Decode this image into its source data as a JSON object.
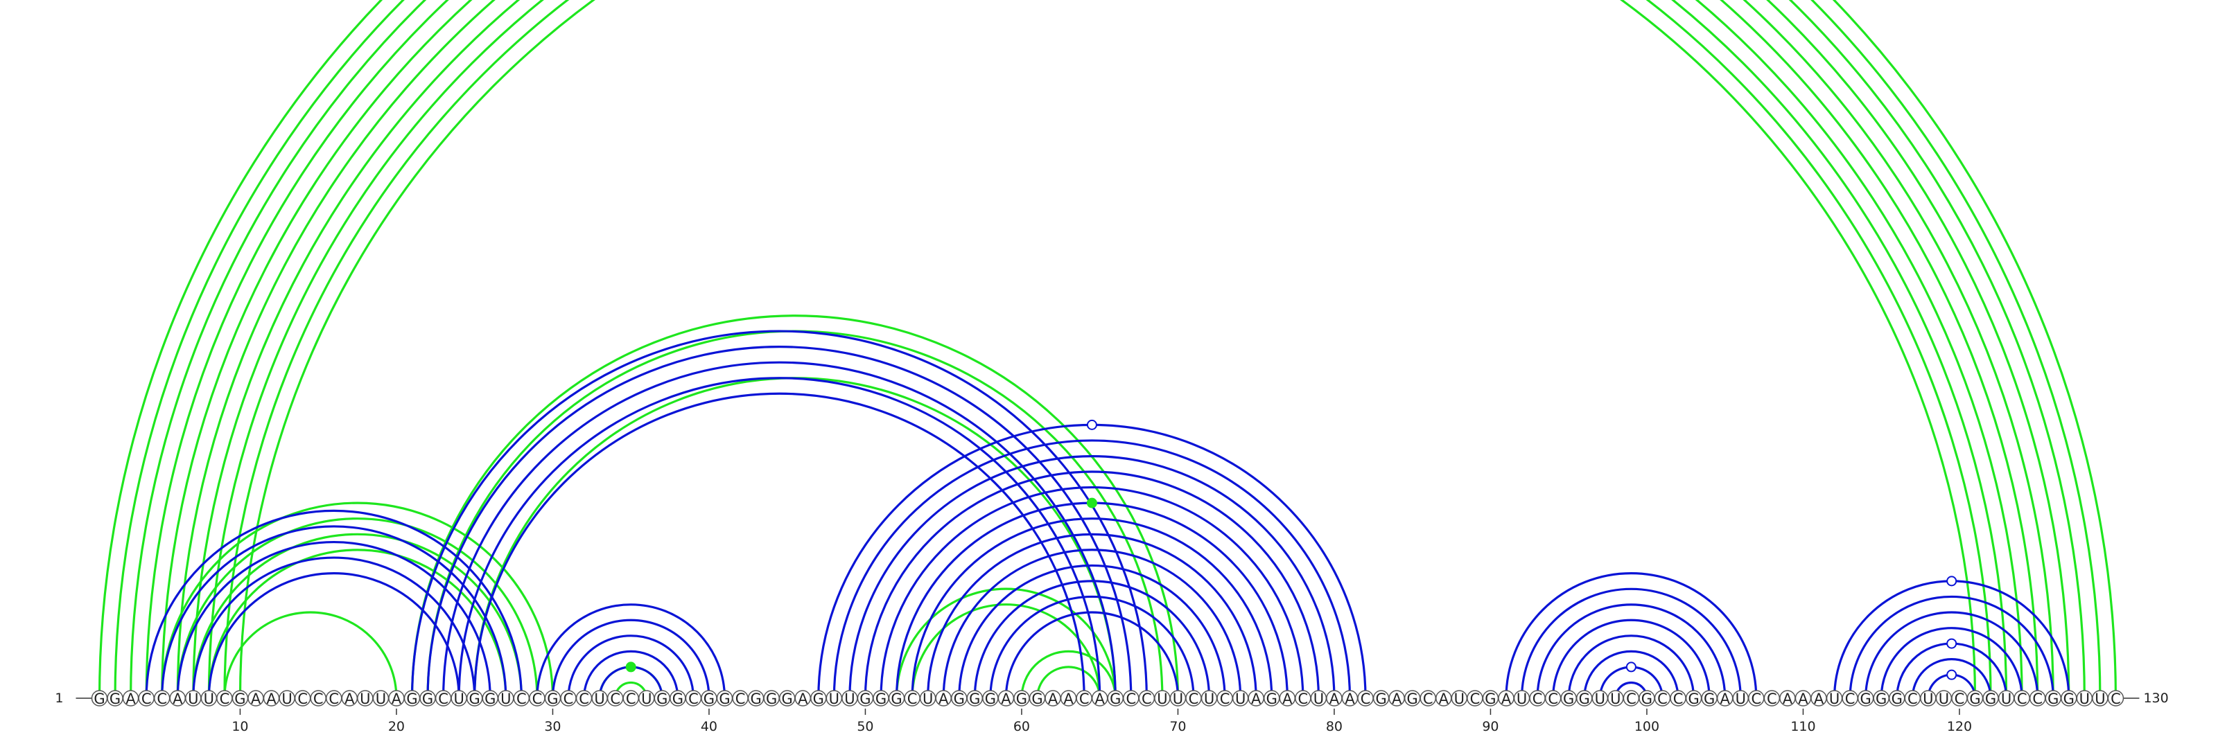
{
  "sequence": "GGACCAUUCGAAUCCCAUUAGGCUGGUCCGCCUCCUGGCGGCGGGAGUUGGGCUAGGGAGGAACAGCCUUCUCUAGACUAACGAGCAUCGAUCCGGUUCGCCGGAUCCAAAUCGGGCUUCGGUCCGGUUC",
  "start_label": "1",
  "end_label": "130",
  "ticks": [
    10,
    20,
    30,
    40,
    50,
    60,
    70,
    80,
    90,
    100,
    110,
    120
  ],
  "colors": {
    "blue": "#0a14d6",
    "green": "#1ee61e"
  },
  "arcs": {
    "green": [
      [
        1,
        130
      ],
      [
        2,
        129
      ],
      [
        3,
        128
      ],
      [
        4,
        127
      ],
      [
        5,
        126
      ],
      [
        6,
        125
      ],
      [
        7,
        124
      ],
      [
        8,
        123
      ],
      [
        9,
        122
      ],
      [
        10,
        121
      ],
      [
        5,
        30
      ],
      [
        6,
        29
      ],
      [
        7,
        28
      ],
      [
        8,
        27
      ],
      [
        9,
        20
      ],
      [
        21,
        70
      ],
      [
        22,
        69
      ],
      [
        25,
        66
      ],
      [
        33,
        37
      ],
      [
        34,
        36
      ],
      [
        52,
        66
      ],
      [
        53,
        65
      ],
      [
        60,
        66
      ],
      [
        61,
        65
      ]
    ],
    "blue": [
      [
        4,
        28
      ],
      [
        5,
        27
      ],
      [
        6,
        26
      ],
      [
        7,
        25
      ],
      [
        8,
        24
      ],
      [
        29,
        41
      ],
      [
        30,
        40
      ],
      [
        31,
        39
      ],
      [
        32,
        38
      ],
      [
        33,
        37
      ],
      [
        21,
        68
      ],
      [
        22,
        67
      ],
      [
        23,
        66
      ],
      [
        24,
        65
      ],
      [
        25,
        64
      ],
      [
        47,
        82
      ],
      [
        48,
        81
      ],
      [
        49,
        80
      ],
      [
        50,
        79
      ],
      [
        51,
        78
      ],
      [
        52,
        77
      ],
      [
        53,
        76
      ],
      [
        54,
        75
      ],
      [
        55,
        74
      ],
      [
        56,
        73
      ],
      [
        57,
        72
      ],
      [
        58,
        71
      ],
      [
        59,
        70
      ],
      [
        91,
        107
      ],
      [
        92,
        106
      ],
      [
        93,
        105
      ],
      [
        94,
        104
      ],
      [
        95,
        103
      ],
      [
        96,
        102
      ],
      [
        97,
        101
      ],
      [
        98,
        100
      ],
      [
        112,
        127
      ],
      [
        113,
        126
      ],
      [
        114,
        125
      ],
      [
        115,
        124
      ],
      [
        116,
        123
      ],
      [
        117,
        122
      ],
      [
        118,
        121
      ]
    ]
  },
  "markers": [
    {
      "pos": 65.5,
      "arc": [
        1,
        130
      ],
      "color": "green",
      "filled": false
    },
    {
      "pos": 35,
      "arc": [
        33,
        37
      ],
      "color": "green",
      "filled": true
    },
    {
      "pos": 64.5,
      "arc": [
        47,
        82
      ],
      "color": "blue",
      "filled": false
    },
    {
      "pos": 64.5,
      "arc": [
        52,
        77
      ],
      "color": "green",
      "filled": true
    },
    {
      "pos": 99,
      "arc": [
        97,
        101
      ],
      "color": "blue",
      "filled": false
    },
    {
      "pos": 119.5,
      "arc": [
        112,
        127
      ],
      "color": "blue",
      "filled": false
    },
    {
      "pos": 119.5,
      "arc": [
        116,
        123
      ],
      "color": "blue",
      "filled": false
    },
    {
      "pos": 119.5,
      "arc": [
        118,
        121
      ],
      "color": "blue",
      "filled": false
    }
  ]
}
